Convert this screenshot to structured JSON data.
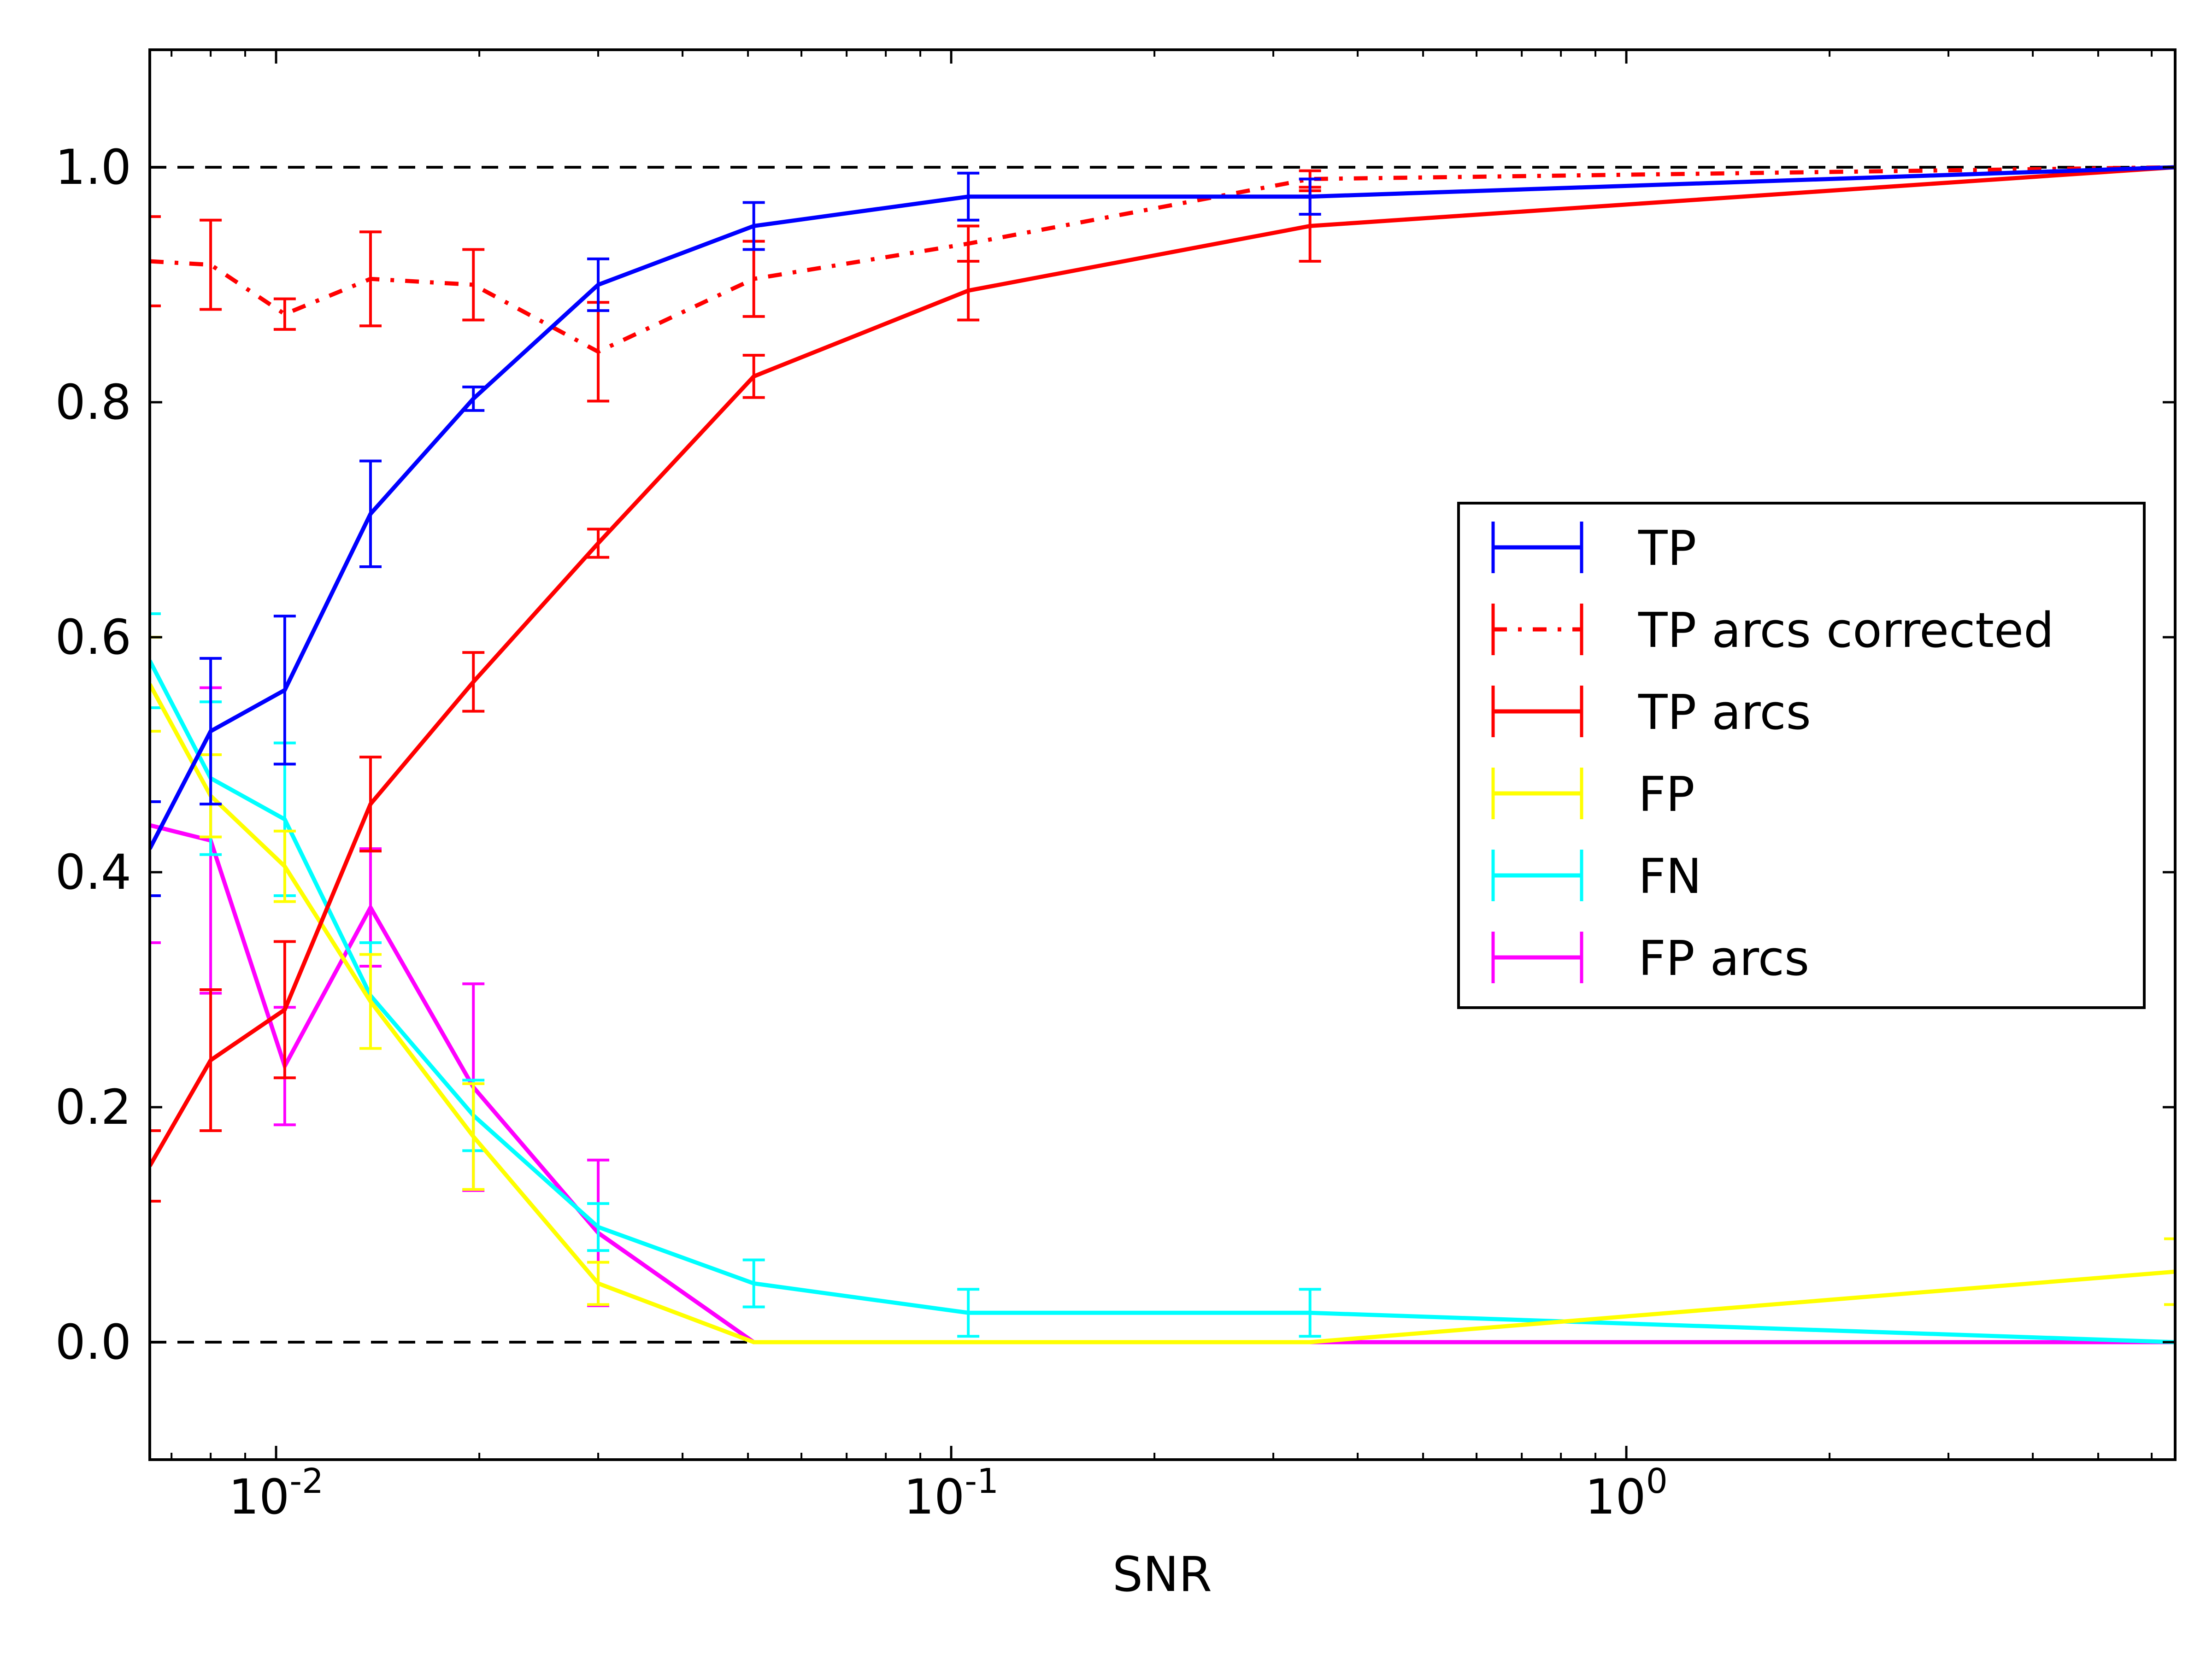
{
  "chart_data": {
    "type": "line",
    "xlabel": "SNR",
    "ylabel": "",
    "title": "",
    "x_scale": "log",
    "xlim": [
      0.0065,
      6.5
    ],
    "ylim": [
      -0.1,
      1.1
    ],
    "x_ticks": [
      {
        "value": 0.01,
        "base": "10",
        "exp": "-2"
      },
      {
        "value": 0.1,
        "base": "10",
        "exp": "-1"
      },
      {
        "value": 1,
        "base": "10",
        "exp": "0"
      }
    ],
    "y_ticks": [
      {
        "value": 0.0,
        "label": "0.0"
      },
      {
        "value": 0.2,
        "label": "0.2"
      },
      {
        "value": 0.4,
        "label": "0.4"
      },
      {
        "value": 0.6,
        "label": "0.6"
      },
      {
        "value": 0.8,
        "label": "0.8"
      },
      {
        "value": 1.0,
        "label": "1.0"
      }
    ],
    "reference_lines": [
      0.0,
      1.0
    ],
    "legend_position": "center-right",
    "x": [
      0.0065,
      0.008,
      0.0103,
      0.0138,
      0.0196,
      0.03,
      0.051,
      0.106,
      0.34,
      6.5
    ],
    "series": [
      {
        "name": "TP",
        "color": "#0000ff",
        "style": "solid",
        "values": [
          0.42,
          0.52,
          0.555,
          0.705,
          0.803,
          0.9,
          0.95,
          0.975,
          0.975,
          1.0
        ],
        "errors": [
          0.04,
          0.062,
          0.063,
          0.045,
          0.01,
          0.022,
          0.02,
          0.02,
          0.015,
          0.0
        ]
      },
      {
        "name": "TP arcs corrected",
        "color": "#ff0000",
        "style": "dashdot",
        "values": [
          0.92,
          0.917,
          0.875,
          0.905,
          0.9,
          0.843,
          0.905,
          0.935,
          0.99,
          1.0
        ],
        "errors": [
          0.038,
          0.038,
          0.013,
          0.04,
          0.03,
          0.042,
          0.032,
          0.015,
          0.007,
          0.0
        ]
      },
      {
        "name": "TP arcs",
        "color": "#ff0000",
        "style": "solid",
        "values": [
          0.15,
          0.24,
          0.283,
          0.458,
          0.562,
          0.68,
          0.822,
          0.895,
          0.95,
          1.0
        ],
        "errors": [
          0.03,
          0.06,
          0.058,
          0.04,
          0.025,
          0.012,
          0.018,
          0.025,
          0.03,
          0.0
        ]
      },
      {
        "name": "FP",
        "color": "#ffff00",
        "style": "solid",
        "values": [
          0.56,
          0.465,
          0.405,
          0.29,
          0.175,
          0.05,
          0.0,
          0.0,
          0.0,
          0.06
        ],
        "errors": [
          0.04,
          0.035,
          0.03,
          0.04,
          0.045,
          0.018,
          0.0,
          0.0,
          0.0,
          0.028
        ]
      },
      {
        "name": "FN",
        "color": "#00ffff",
        "style": "solid",
        "values": [
          0.58,
          0.48,
          0.445,
          0.295,
          0.193,
          0.098,
          0.05,
          0.025,
          0.025,
          0.0
        ],
        "errors": [
          0.04,
          0.065,
          0.065,
          0.045,
          0.03,
          0.02,
          0.02,
          0.02,
          0.02,
          0.0
        ]
      },
      {
        "name": "FP arcs",
        "color": "#ff00ff",
        "style": "solid",
        "values": [
          0.44,
          0.427,
          0.235,
          0.37,
          0.217,
          0.093,
          0.0,
          0.0,
          0.0,
          0.0
        ],
        "errors": [
          0.1,
          0.13,
          0.05,
          0.05,
          0.088,
          0.062,
          0.0,
          0.0,
          0.0,
          0.0
        ]
      }
    ]
  }
}
